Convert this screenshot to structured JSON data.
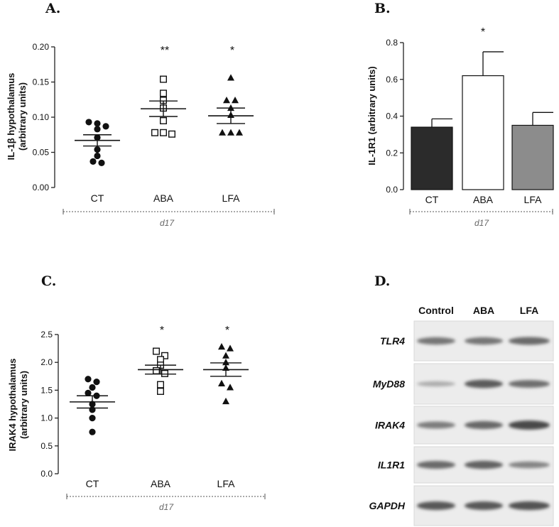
{
  "chart_data": [
    {
      "panel": "A.",
      "type": "scatter",
      "ylabel_line1": "IL-1β hypothalamus",
      "ylabel_line2": "(arbitrary units)",
      "ylim": [
        0,
        0.2
      ],
      "yticks": [
        0.0,
        0.05,
        0.1,
        0.15,
        0.2
      ],
      "ytick_labels": [
        "0.00",
        "0.05",
        "0.10",
        "0.15",
        "0.20"
      ],
      "categories": [
        "CT",
        "ABA",
        "LFA"
      ],
      "group_label": "d17",
      "markers": [
        "circle-filled",
        "square-open",
        "triangle-filled"
      ],
      "series": [
        {
          "category": "CT",
          "points": [
            0.091,
            0.093,
            0.087,
            0.083,
            0.071,
            0.054,
            0.045,
            0.037,
            0.035
          ],
          "mean": 0.067,
          "sem": 0.008,
          "significance": ""
        },
        {
          "category": "ABA",
          "points": [
            0.154,
            0.134,
            0.124,
            0.113,
            0.095,
            0.078,
            0.078,
            0.076
          ],
          "mean": 0.112,
          "sem": 0.011,
          "significance": "**"
        },
        {
          "category": "LFA",
          "points": [
            0.156,
            0.124,
            0.124,
            0.113,
            0.103,
            0.078,
            0.078,
            0.078
          ],
          "mean": 0.102,
          "sem": 0.011,
          "significance": "*"
        }
      ]
    },
    {
      "panel": "B.",
      "type": "bar",
      "ylabel": "IL-1R1 (arbitrary units)",
      "ylim": [
        0,
        0.8
      ],
      "yticks": [
        0.0,
        0.2,
        0.4,
        0.6,
        0.8
      ],
      "ytick_labels": [
        "0.0",
        "0.2",
        "0.4",
        "0.6",
        "0.8"
      ],
      "categories": [
        "CT",
        "ABA",
        "LFA"
      ],
      "group_label": "d17",
      "values": [
        0.34,
        0.62,
        0.35
      ],
      "errors": [
        0.045,
        0.13,
        0.07
      ],
      "colors": [
        "#2b2b2b",
        "#ffffff",
        "#8c8c8c"
      ],
      "significance": [
        "",
        "*",
        ""
      ]
    },
    {
      "panel": "C.",
      "type": "scatter",
      "ylabel_line1": "IRAK4 hypothalamus",
      "ylabel_line2": "(arbitrary units)",
      "ylim": [
        0,
        2.5
      ],
      "yticks": [
        0.0,
        0.5,
        1.0,
        1.5,
        2.0,
        2.5
      ],
      "ytick_labels": [
        "0.0",
        "0.5",
        "1.0",
        "1.5",
        "2.0",
        "2.5"
      ],
      "categories": [
        "CT",
        "ABA",
        "LFA"
      ],
      "group_label": "d17",
      "markers": [
        "circle-filled",
        "square-open",
        "triangle-filled"
      ],
      "series": [
        {
          "category": "CT",
          "points": [
            1.7,
            1.65,
            1.55,
            1.45,
            1.4,
            1.25,
            1.15,
            1.0,
            0.75
          ],
          "mean": 1.29,
          "sem": 0.11,
          "significance": ""
        },
        {
          "category": "ABA",
          "points": [
            2.2,
            2.12,
            2.05,
            1.95,
            1.85,
            1.8,
            1.6,
            1.48
          ],
          "mean": 1.87,
          "sem": 0.08,
          "significance": "*"
        },
        {
          "category": "LFA",
          "points": [
            2.28,
            2.25,
            2.12,
            2.0,
            1.9,
            1.62,
            1.55,
            1.3
          ],
          "mean": 1.87,
          "sem": 0.12,
          "significance": "*"
        }
      ]
    }
  ],
  "western_blot": {
    "panel": "D.",
    "columns": [
      "Control",
      "ABA",
      "LFA"
    ],
    "rows": [
      {
        "label": "TLR4",
        "intensities": [
          0.55,
          0.55,
          0.62
        ]
      },
      {
        "label": "MyD88",
        "intensities": [
          0.18,
          0.72,
          0.6
        ]
      },
      {
        "label": "IRAK4",
        "intensities": [
          0.5,
          0.65,
          0.85
        ]
      },
      {
        "label": "IL1R1",
        "intensities": [
          0.62,
          0.68,
          0.45
        ]
      },
      {
        "label": "GAPDH",
        "intensities": [
          0.75,
          0.75,
          0.78
        ]
      }
    ]
  }
}
